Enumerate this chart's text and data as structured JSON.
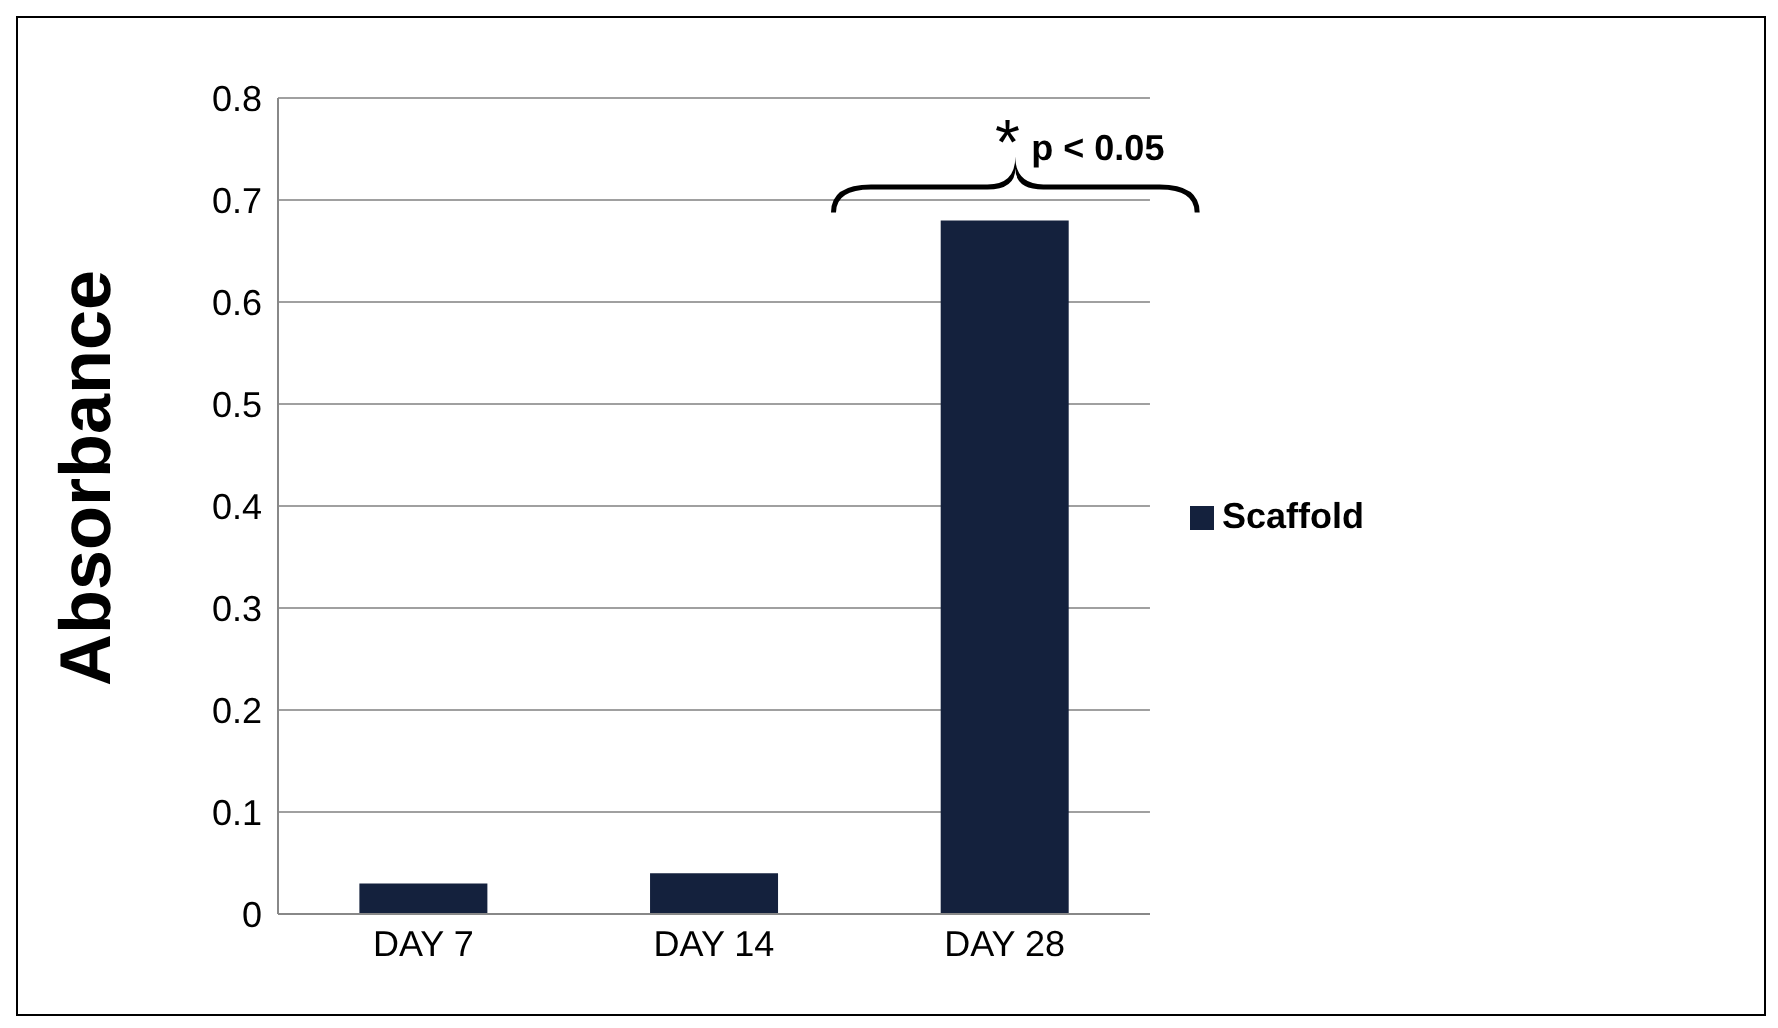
{
  "chart_data": {
    "type": "bar",
    "ylabel": "Absorbance",
    "categories": [
      "DAY 7",
      "DAY 14",
      "DAY 28"
    ],
    "series": [
      {
        "name": "Scaffold",
        "color": "#14213d",
        "values": [
          0.03,
          0.04,
          0.68
        ]
      }
    ],
    "ylim": [
      0,
      0.8
    ],
    "yticks": [
      0,
      0.1,
      0.2,
      0.3,
      0.4,
      0.5,
      0.6,
      0.7,
      0.8
    ],
    "grid": "y",
    "legend": "right",
    "annotations": [
      "*",
      "p < 0.05"
    ]
  }
}
